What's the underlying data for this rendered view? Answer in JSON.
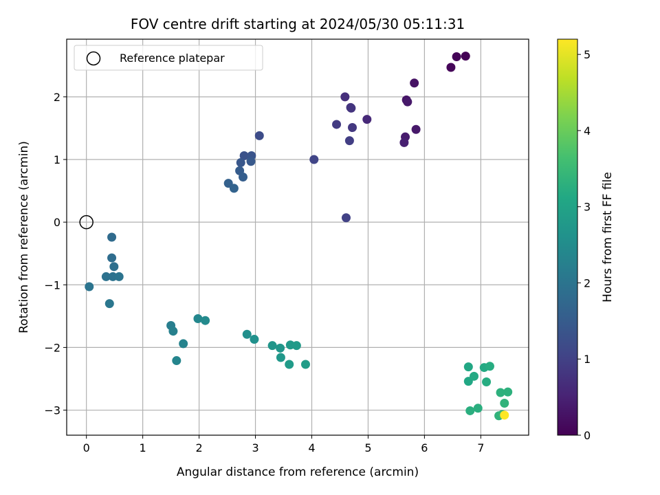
{
  "chart_data": {
    "type": "scatter",
    "title": "FOV centre drift starting at 2024/05/30 05:11:31",
    "xlabel": "Angular distance from reference (arcmin)",
    "ylabel": "Rotation from reference (arcmin)",
    "xlim": [
      -0.35,
      7.85
    ],
    "ylim": [
      -3.4,
      2.92
    ],
    "xticks": [
      0,
      1,
      2,
      3,
      4,
      5,
      6,
      7
    ],
    "yticks": [
      -3,
      -2,
      -1,
      0,
      1,
      2
    ],
    "grid": true,
    "legend": {
      "placement": "top-left",
      "entries": [
        "Reference platepar"
      ]
    },
    "reference_point": {
      "x": 0,
      "y": 0
    },
    "colorbar": {
      "label": "Hours from first FF file",
      "range": [
        0,
        5.2
      ],
      "ticks": [
        0,
        1,
        2,
        3,
        4,
        5
      ],
      "colormap": "viridis"
    },
    "points": [
      {
        "x": 6.73,
        "y": 2.65,
        "t": 0.02
      },
      {
        "x": 6.57,
        "y": 2.64,
        "t": 0.05
      },
      {
        "x": 6.47,
        "y": 2.47,
        "t": 0.08
      },
      {
        "x": 5.82,
        "y": 2.22,
        "t": 0.25
      },
      {
        "x": 5.68,
        "y": 1.95,
        "t": 0.3
      },
      {
        "x": 5.7,
        "y": 1.92,
        "t": 0.35
      },
      {
        "x": 5.85,
        "y": 1.48,
        "t": 0.35
      },
      {
        "x": 5.66,
        "y": 1.36,
        "t": 0.4
      },
      {
        "x": 5.64,
        "y": 1.27,
        "t": 0.45
      },
      {
        "x": 4.98,
        "y": 1.64,
        "t": 0.6
      },
      {
        "x": 4.59,
        "y": 2.0,
        "t": 0.7
      },
      {
        "x": 4.7,
        "y": 1.82,
        "t": 0.75
      },
      {
        "x": 4.69,
        "y": 1.83,
        "t": 0.8
      },
      {
        "x": 4.72,
        "y": 1.51,
        "t": 0.85
      },
      {
        "x": 4.44,
        "y": 1.56,
        "t": 0.9
      },
      {
        "x": 4.67,
        "y": 1.3,
        "t": 0.95
      },
      {
        "x": 4.04,
        "y": 1.0,
        "t": 1.05
      },
      {
        "x": 4.61,
        "y": 0.07,
        "t": 1.0
      },
      {
        "x": 3.07,
        "y": 1.38,
        "t": 1.2
      },
      {
        "x": 2.8,
        "y": 1.06,
        "t": 1.3
      },
      {
        "x": 2.93,
        "y": 1.06,
        "t": 1.35
      },
      {
        "x": 2.74,
        "y": 0.95,
        "t": 1.4
      },
      {
        "x": 2.92,
        "y": 0.97,
        "t": 1.45
      },
      {
        "x": 2.72,
        "y": 0.82,
        "t": 1.5
      },
      {
        "x": 2.78,
        "y": 0.72,
        "t": 1.55
      },
      {
        "x": 2.52,
        "y": 0.62,
        "t": 1.6
      },
      {
        "x": 2.62,
        "y": 0.54,
        "t": 1.65
      },
      {
        "x": 0.45,
        "y": -0.24,
        "t": 1.8
      },
      {
        "x": 0.45,
        "y": -0.57,
        "t": 1.85
      },
      {
        "x": 0.49,
        "y": -0.71,
        "t": 1.9
      },
      {
        "x": 0.35,
        "y": -0.87,
        "t": 1.95
      },
      {
        "x": 0.47,
        "y": -0.87,
        "t": 1.95
      },
      {
        "x": 0.58,
        "y": -0.87,
        "t": 2.0
      },
      {
        "x": 0.05,
        "y": -1.03,
        "t": 2.0
      },
      {
        "x": 0.41,
        "y": -1.3,
        "t": 2.05
      },
      {
        "x": 1.5,
        "y": -1.65,
        "t": 2.2
      },
      {
        "x": 1.54,
        "y": -1.74,
        "t": 2.25
      },
      {
        "x": 1.72,
        "y": -1.94,
        "t": 2.3
      },
      {
        "x": 1.6,
        "y": -2.21,
        "t": 2.35
      },
      {
        "x": 1.98,
        "y": -1.54,
        "t": 2.4
      },
      {
        "x": 2.11,
        "y": -1.57,
        "t": 2.45
      },
      {
        "x": 2.85,
        "y": -1.79,
        "t": 2.55
      },
      {
        "x": 2.98,
        "y": -1.87,
        "t": 2.6
      },
      {
        "x": 3.3,
        "y": -1.97,
        "t": 2.7
      },
      {
        "x": 3.44,
        "y": -2.01,
        "t": 2.72
      },
      {
        "x": 3.45,
        "y": -2.16,
        "t": 2.75
      },
      {
        "x": 3.62,
        "y": -1.96,
        "t": 2.78
      },
      {
        "x": 3.73,
        "y": -1.97,
        "t": 2.8
      },
      {
        "x": 3.6,
        "y": -2.27,
        "t": 2.82
      },
      {
        "x": 3.89,
        "y": -2.27,
        "t": 2.85
      },
      {
        "x": 6.78,
        "y": -2.31,
        "t": 3.1
      },
      {
        "x": 6.78,
        "y": -2.54,
        "t": 3.1
      },
      {
        "x": 6.88,
        "y": -2.46,
        "t": 3.15
      },
      {
        "x": 7.06,
        "y": -2.32,
        "t": 3.15
      },
      {
        "x": 7.16,
        "y": -2.3,
        "t": 3.2
      },
      {
        "x": 7.1,
        "y": -2.55,
        "t": 3.2
      },
      {
        "x": 6.95,
        "y": -2.97,
        "t": 3.25
      },
      {
        "x": 6.81,
        "y": -3.01,
        "t": 3.25
      },
      {
        "x": 7.35,
        "y": -2.72,
        "t": 3.3
      },
      {
        "x": 7.48,
        "y": -2.71,
        "t": 3.3
      },
      {
        "x": 7.42,
        "y": -2.89,
        "t": 3.35
      },
      {
        "x": 7.32,
        "y": -3.09,
        "t": 3.35
      },
      {
        "x": 7.38,
        "y": -3.07,
        "t": 3.4
      },
      {
        "x": 7.42,
        "y": -3.08,
        "t": 5.2
      }
    ]
  }
}
